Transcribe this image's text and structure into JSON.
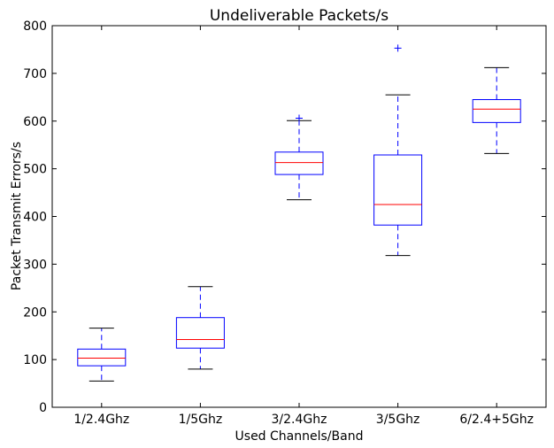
{
  "chart_data": {
    "type": "boxplot",
    "title": "Undeliverable Packets/s",
    "xlabel": "Used Channels/Band",
    "ylabel": "Packet Transmit Errors/s",
    "ylim": [
      0,
      800
    ],
    "yticks": [
      0,
      100,
      200,
      300,
      400,
      500,
      600,
      700,
      800
    ],
    "grid": false,
    "categories": [
      "1/2.4Ghz",
      "1/5Ghz",
      "3/2.4Ghz",
      "3/5Ghz",
      "6/2.4+5Ghz"
    ],
    "boxes": [
      {
        "whisker_low": 55,
        "q1": 87,
        "median": 103,
        "q3": 122,
        "whisker_high": 166,
        "outliers": []
      },
      {
        "whisker_low": 80,
        "q1": 124,
        "median": 142,
        "q3": 188,
        "whisker_high": 253,
        "outliers": []
      },
      {
        "whisker_low": 435,
        "q1": 488,
        "median": 513,
        "q3": 535,
        "whisker_high": 601,
        "outliers": [
          606
        ]
      },
      {
        "whisker_low": 318,
        "q1": 382,
        "median": 425,
        "q3": 529,
        "whisker_high": 655,
        "outliers": [
          753
        ]
      },
      {
        "whisker_low": 532,
        "q1": 597,
        "median": 625,
        "q3": 645,
        "whisker_high": 712,
        "outliers": []
      }
    ],
    "colors": {
      "box": "#0000ff",
      "median": "#ff0000",
      "cap": "#000000",
      "outlier": "#0000ff",
      "axis": "#000000"
    }
  }
}
